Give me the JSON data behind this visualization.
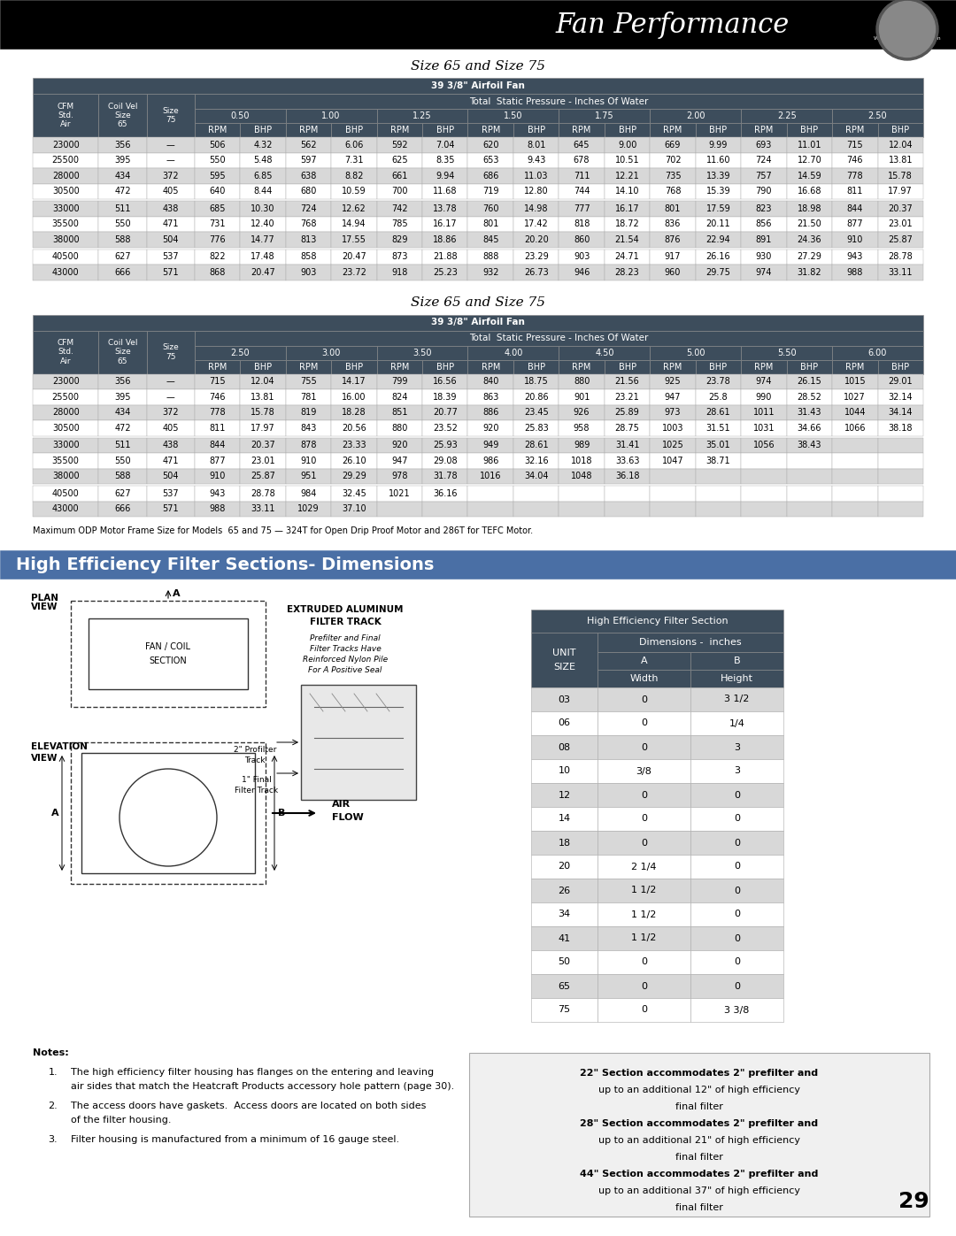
{
  "title_bar_text": "Fan Performance",
  "table1_title": "Size 65 and Size 75",
  "table2_title": "Size 65 and Size 75",
  "table1_data": [
    [
      "23000",
      "356",
      "—",
      "506",
      "4.32",
      "562",
      "6.06",
      "592",
      "7.04",
      "620",
      "8.01",
      "645",
      "9.00",
      "669",
      "9.99",
      "693",
      "11.01",
      "715",
      "12.04"
    ],
    [
      "25500",
      "395",
      "—",
      "550",
      "5.48",
      "597",
      "7.31",
      "625",
      "8.35",
      "653",
      "9.43",
      "678",
      "10.51",
      "702",
      "11.60",
      "724",
      "12.70",
      "746",
      "13.81"
    ],
    [
      "28000",
      "434",
      "372",
      "595",
      "6.85",
      "638",
      "8.82",
      "661",
      "9.94",
      "686",
      "11.03",
      "711",
      "12.21",
      "735",
      "13.39",
      "757",
      "14.59",
      "778",
      "15.78"
    ],
    [
      "30500",
      "472",
      "405",
      "640",
      "8.44",
      "680",
      "10.59",
      "700",
      "11.68",
      "719",
      "12.80",
      "744",
      "14.10",
      "768",
      "15.39",
      "790",
      "16.68",
      "811",
      "17.97"
    ],
    [
      "33000",
      "511",
      "438",
      "685",
      "10.30",
      "724",
      "12.62",
      "742",
      "13.78",
      "760",
      "14.98",
      "777",
      "16.17",
      "801",
      "17.59",
      "823",
      "18.98",
      "844",
      "20.37"
    ],
    [
      "35500",
      "550",
      "471",
      "731",
      "12.40",
      "768",
      "14.94",
      "785",
      "16.17",
      "801",
      "17.42",
      "818",
      "18.72",
      "836",
      "20.11",
      "856",
      "21.50",
      "877",
      "23.01"
    ],
    [
      "38000",
      "588",
      "504",
      "776",
      "14.77",
      "813",
      "17.55",
      "829",
      "18.86",
      "845",
      "20.20",
      "860",
      "21.54",
      "876",
      "22.94",
      "891",
      "24.36",
      "910",
      "25.87"
    ],
    [
      "40500",
      "627",
      "537",
      "822",
      "17.48",
      "858",
      "20.47",
      "873",
      "21.88",
      "888",
      "23.29",
      "903",
      "24.71",
      "917",
      "26.16",
      "930",
      "27.29",
      "943",
      "28.78"
    ],
    [
      "43000",
      "666",
      "571",
      "868",
      "20.47",
      "903",
      "23.72",
      "918",
      "25.23",
      "932",
      "26.73",
      "946",
      "28.23",
      "960",
      "29.75",
      "974",
      "31.82",
      "988",
      "33.11"
    ]
  ],
  "table2_data": [
    [
      "23000",
      "356",
      "—",
      "715",
      "12.04",
      "755",
      "14.17",
      "799",
      "16.56",
      "840",
      "18.75",
      "880",
      "21.56",
      "925",
      "23.78",
      "974",
      "26.15",
      "1015",
      "29.01"
    ],
    [
      "25500",
      "395",
      "—",
      "746",
      "13.81",
      "781",
      "16.00",
      "824",
      "18.39",
      "863",
      "20.86",
      "901",
      "23.21",
      "947",
      "25.8",
      "990",
      "28.52",
      "1027",
      "32.14"
    ],
    [
      "28000",
      "434",
      "372",
      "778",
      "15.78",
      "819",
      "18.28",
      "851",
      "20.77",
      "886",
      "23.45",
      "926",
      "25.89",
      "973",
      "28.61",
      "1011",
      "31.43",
      "1044",
      "34.14"
    ],
    [
      "30500",
      "472",
      "405",
      "811",
      "17.97",
      "843",
      "20.56",
      "880",
      "23.52",
      "920",
      "25.83",
      "958",
      "28.75",
      "1003",
      "31.51",
      "1031",
      "34.66",
      "1066",
      "38.18"
    ],
    [
      "33000",
      "511",
      "438",
      "844",
      "20.37",
      "878",
      "23.33",
      "920",
      "25.93",
      "949",
      "28.61",
      "989",
      "31.41",
      "1025",
      "35.01",
      "1056",
      "38.43",
      "",
      ""
    ],
    [
      "35500",
      "550",
      "471",
      "877",
      "23.01",
      "910",
      "26.10",
      "947",
      "29.08",
      "986",
      "32.16",
      "1018",
      "33.63",
      "1047",
      "38.71",
      "",
      "",
      "",
      ""
    ],
    [
      "38000",
      "588",
      "504",
      "910",
      "25.87",
      "951",
      "29.29",
      "978",
      "31.78",
      "1016",
      "34.04",
      "1048",
      "36.18",
      "",
      "",
      "",
      "",
      "",
      ""
    ],
    [
      "40500",
      "627",
      "537",
      "943",
      "28.78",
      "984",
      "32.45",
      "1021",
      "36.16",
      "",
      "",
      "",
      "",
      "",
      "",
      "",
      "",
      "",
      ""
    ],
    [
      "43000",
      "666",
      "571",
      "988",
      "33.11",
      "1029",
      "37.10",
      "",
      "",
      "",
      "",
      "",
      "",
      "",
      "",
      "",
      "",
      "",
      ""
    ]
  ],
  "pressures_t1": [
    "0.50",
    "1.00",
    "1.25",
    "1.50",
    "1.75",
    "2.00",
    "2.25",
    "2.50"
  ],
  "pressures_t2": [
    "2.50",
    "3.00",
    "3.50",
    "4.00",
    "4.50",
    "5.00",
    "5.50",
    "6.00"
  ],
  "note_text": "Maximum ODP Motor Frame Size for Models  65 and 75 — 324T for Open Drip Proof Motor and 286T for TEFC Motor.",
  "filter_section_title": "High Efficiency Filter Sections- Dimensions",
  "filter_table_data": [
    [
      "03",
      "0",
      "3 1/2"
    ],
    [
      "06",
      "0",
      "1/4"
    ],
    [
      "08",
      "0",
      "3"
    ],
    [
      "10",
      "3/8",
      "3"
    ],
    [
      "12",
      "0",
      "0"
    ],
    [
      "14",
      "0",
      "0"
    ],
    [
      "18",
      "0",
      "0"
    ],
    [
      "20",
      "2 1/4",
      "0"
    ],
    [
      "26",
      "1 1/2",
      "0"
    ],
    [
      "34",
      "1 1/2",
      "0"
    ],
    [
      "41",
      "1 1/2",
      "0"
    ],
    [
      "50",
      "0",
      "0"
    ],
    [
      "65",
      "0",
      "0"
    ],
    [
      "75",
      "0",
      "3 3/8"
    ]
  ],
  "notes": [
    [
      "1.",
      "The high efficiency filter housing has flanges on the entering and leaving",
      "air sides that match the Heatcraft Products accessory hole pattern (page 30)."
    ],
    [
      "2.",
      "The access doors have gaskets.  Access doors are located on both sides",
      "of the filter housing."
    ],
    [
      "3.",
      "Filter housing is manufactured from a minimum of 16 gauge steel.",
      ""
    ]
  ],
  "side_note_lines": [
    "22\" Section accommodates 2\" prefilter and",
    "up to an additional 12\" of high efficiency",
    "final filter",
    "28\" Section accommodates 2\" prefilter and",
    "up to an additional 21\" of high efficiency",
    "final filter",
    "44\" Section accommodates 2\" prefilter and",
    "up to an additional 37\" of high efficiency",
    "final filter"
  ],
  "page_number": "29",
  "header_bg": "#3d4d5c",
  "header_fg": "#ffffff",
  "row_even": "#d8d8d8",
  "row_odd": "#ffffff",
  "filter_title_bg": "#4a6fa5",
  "black": "#000000",
  "white": "#ffffff"
}
